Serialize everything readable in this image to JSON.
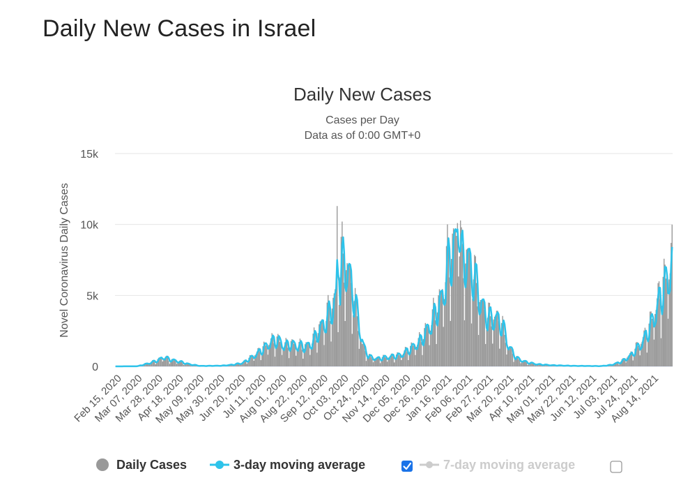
{
  "page": {
    "heading": "Daily New Cases in Israel"
  },
  "chart_data": {
    "type": "bar",
    "title": "Daily New Cases",
    "subtitle_lines": [
      "Cases per Day",
      "Data as of 0:00 GMT+0"
    ],
    "ylabel": "Novel Coronavirus Daily Cases",
    "xlabel": "",
    "ylim": [
      0,
      15000
    ],
    "yticks": [
      0,
      5000,
      10000,
      15000
    ],
    "ytick_labels": [
      "0",
      "5k",
      "10k",
      "15k"
    ],
    "x_start": "2020-02-15",
    "x_end": "2021-08-23",
    "xtick_labels": [
      "Feb 15, 2020",
      "Mar 07, 2020",
      "Mar 28, 2020",
      "Apr 18, 2020",
      "May 09, 2020",
      "May 30, 2020",
      "Jun 20, 2020",
      "Jul 11, 2020",
      "Aug 01, 2020",
      "Aug 22, 2020",
      "Sep 12, 2020",
      "Oct 03, 2020",
      "Oct 24, 2020",
      "Nov 14, 2020",
      "Dec 05, 2020",
      "Dec 26, 2020",
      "Jan 16, 2021",
      "Feb 06, 2021",
      "Feb 27, 2021",
      "Mar 20, 2021",
      "Apr 10, 2021",
      "May 01, 2021",
      "May 22, 2021",
      "Jun 12, 2021",
      "Jul 03, 2021",
      "Jul 24, 2021",
      "Aug 14, 2021"
    ],
    "anchors": [
      [
        "2020-02-15",
        0
      ],
      [
        "2020-03-07",
        10
      ],
      [
        "2020-03-17",
        200
      ],
      [
        "2020-03-28",
        450
      ],
      [
        "2020-04-02",
        700
      ],
      [
        "2020-04-08",
        500
      ],
      [
        "2020-04-18",
        350
      ],
      [
        "2020-04-28",
        150
      ],
      [
        "2020-05-09",
        30
      ],
      [
        "2020-05-30",
        50
      ],
      [
        "2020-06-10",
        120
      ],
      [
        "2020-06-20",
        250
      ],
      [
        "2020-06-30",
        700
      ],
      [
        "2020-07-11",
        1300
      ],
      [
        "2020-07-18",
        1800
      ],
      [
        "2020-07-25",
        1900
      ],
      [
        "2020-08-01",
        1500
      ],
      [
        "2020-08-08",
        1600
      ],
      [
        "2020-08-15",
        1500
      ],
      [
        "2020-08-22",
        1400
      ],
      [
        "2020-08-29",
        1800
      ],
      [
        "2020-09-05",
        2700
      ],
      [
        "2020-09-12",
        3500
      ],
      [
        "2020-09-19",
        4500
      ],
      [
        "2020-09-24",
        5500
      ],
      [
        "2020-09-28",
        7800
      ],
      [
        "2020-10-03",
        7000
      ],
      [
        "2020-10-08",
        5500
      ],
      [
        "2020-10-13",
        3500
      ],
      [
        "2020-10-18",
        1500
      ],
      [
        "2020-10-24",
        700
      ],
      [
        "2020-11-01",
        550
      ],
      [
        "2020-11-14",
        700
      ],
      [
        "2020-11-24",
        800
      ],
      [
        "2020-12-05",
        1300
      ],
      [
        "2020-12-15",
        1900
      ],
      [
        "2020-12-26",
        3300
      ],
      [
        "2021-01-05",
        5000
      ],
      [
        "2021-01-11",
        7500
      ],
      [
        "2021-01-16",
        8500
      ],
      [
        "2021-01-20",
        9000
      ],
      [
        "2021-01-26",
        8000
      ],
      [
        "2021-02-01",
        7500
      ],
      [
        "2021-02-06",
        6500
      ],
      [
        "2021-02-13",
        4500
      ],
      [
        "2021-02-20",
        3500
      ],
      [
        "2021-02-27",
        3500
      ],
      [
        "2021-03-06",
        3000
      ],
      [
        "2021-03-12",
        1500
      ],
      [
        "2021-03-20",
        600
      ],
      [
        "2021-03-30",
        300
      ],
      [
        "2021-04-10",
        150
      ],
      [
        "2021-04-25",
        80
      ],
      [
        "2021-05-15",
        40
      ],
      [
        "2021-06-12",
        20
      ],
      [
        "2021-06-22",
        100
      ],
      [
        "2021-07-03",
        350
      ],
      [
        "2021-07-12",
        800
      ],
      [
        "2021-07-24",
        1800
      ],
      [
        "2021-08-01",
        3000
      ],
      [
        "2021-08-08",
        4500
      ],
      [
        "2021-08-14",
        5800
      ],
      [
        "2021-08-18",
        6500
      ],
      [
        "2021-08-23",
        7800
      ]
    ],
    "spikes": [
      [
        "2020-09-23",
        11300
      ],
      [
        "2021-01-18",
        9600
      ],
      [
        "2021-01-21",
        10100
      ],
      [
        "2021-01-25",
        9800
      ],
      [
        "2021-08-22",
        8700
      ]
    ],
    "series": [
      {
        "name": "Daily Cases",
        "color": "#999999",
        "marker": "circle"
      },
      {
        "name": "3-day moving average",
        "color": "#2ec3ea",
        "marker": "circle-line",
        "checked": true
      },
      {
        "name": "7-day moving average",
        "color": "#cccccc",
        "marker": "circle-line",
        "checked": false
      }
    ],
    "grid": true,
    "legend_position": "bottom"
  }
}
